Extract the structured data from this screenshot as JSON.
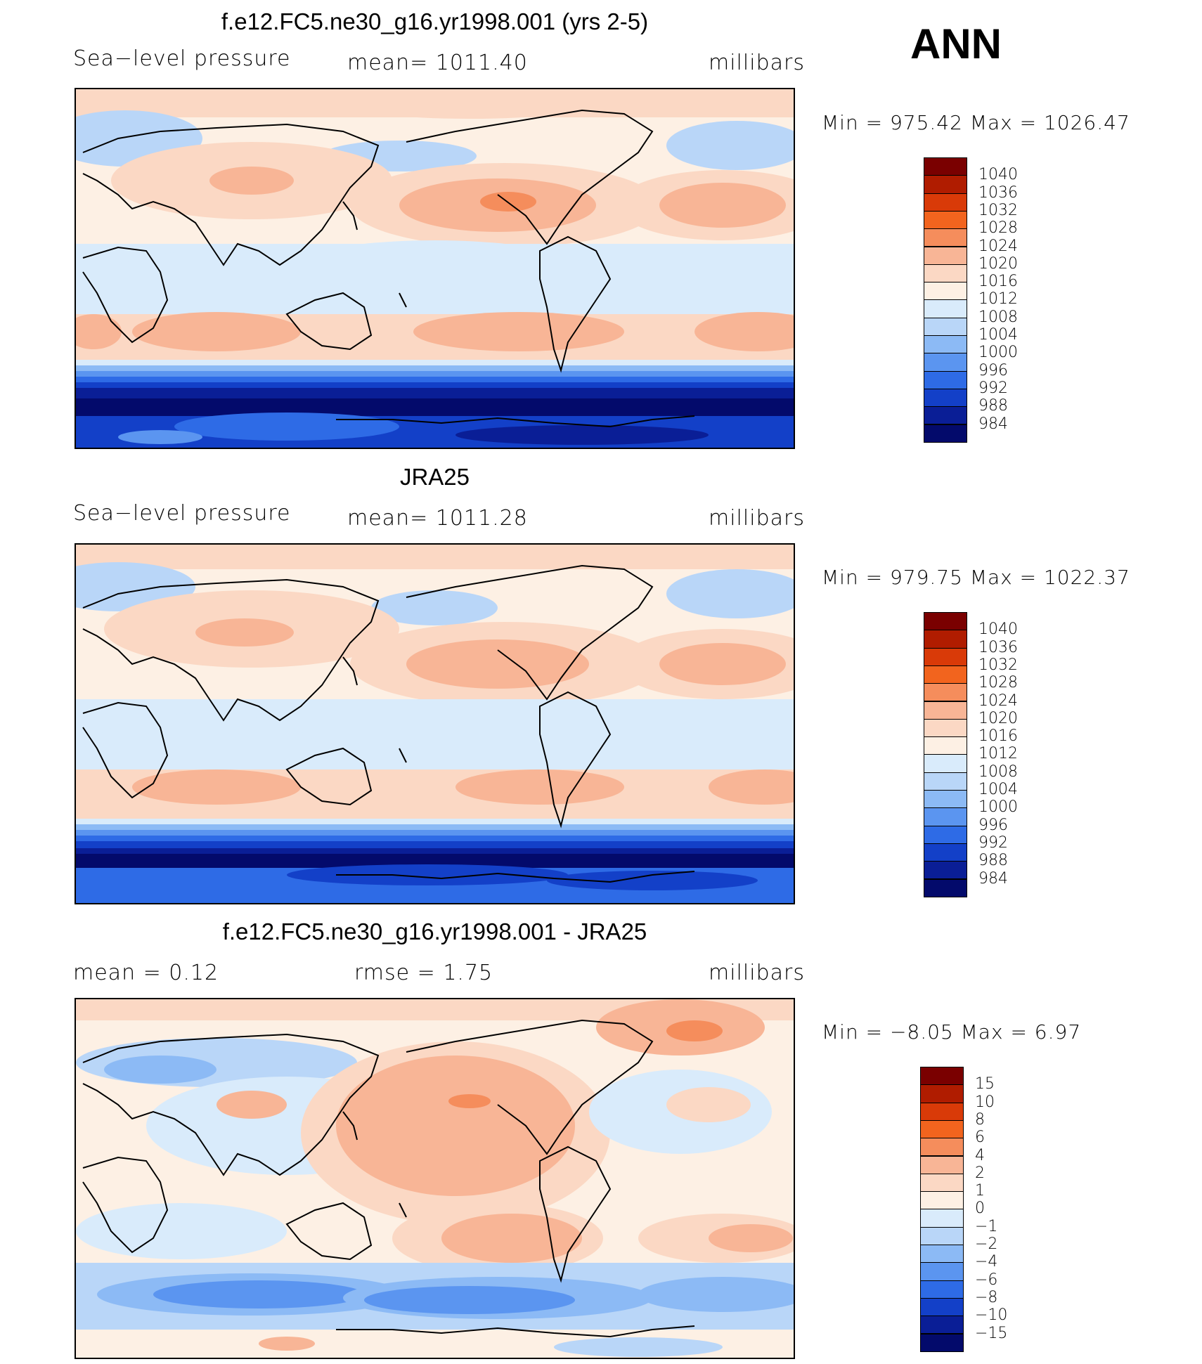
{
  "season": "ANN",
  "panels": [
    {
      "title": "f.e12.FC5.ne30_g16.yr1998.001 (yrs 2-5)",
      "left_label": "Sea−level pressure",
      "center_label": "mean=  1011.40",
      "right_label": "millibars",
      "minmax": "Min  =  975.42  Max  =  1026.47",
      "legend": {
        "levels": [
          "1040",
          "1036",
          "1032",
          "1028",
          "1024",
          "1020",
          "1016",
          "1012",
          "1008",
          "1004",
          "1000",
          "996",
          "992",
          "988",
          "984"
        ],
        "colors": [
          "#7a0000",
          "#b01c00",
          "#d93a08",
          "#f2641e",
          "#f58d5c",
          "#f8b596",
          "#fbd8c4",
          "#fdf0e4",
          "#d9ebfb",
          "#b9d6f8",
          "#8cbaf5",
          "#5b95f0",
          "#2e6be6",
          "#1340c8",
          "#0a1e96",
          "#030a6b"
        ]
      }
    },
    {
      "title": "JRA25",
      "left_label": "Sea−level pressure",
      "center_label": "mean=  1011.28",
      "right_label": "millibars",
      "minmax": "Min  =  979.75  Max  =  1022.37",
      "legend": {
        "levels": [
          "1040",
          "1036",
          "1032",
          "1028",
          "1024",
          "1020",
          "1016",
          "1012",
          "1008",
          "1004",
          "1000",
          "996",
          "992",
          "988",
          "984"
        ],
        "colors": [
          "#7a0000",
          "#b01c00",
          "#d93a08",
          "#f2641e",
          "#f58d5c",
          "#f8b596",
          "#fbd8c4",
          "#fdf0e4",
          "#d9ebfb",
          "#b9d6f8",
          "#8cbaf5",
          "#5b95f0",
          "#2e6be6",
          "#1340c8",
          "#0a1e96",
          "#030a6b"
        ]
      }
    },
    {
      "title": "f.e12.FC5.ne30_g16.yr1998.001 - JRA25",
      "left_label": "mean  =     0.12",
      "center_label": "rmse  =     1.75",
      "right_label": "millibars",
      "minmax": "Min  =   −8.05  Max  =      6.97",
      "legend": {
        "levels": [
          "15",
          "10",
          "8",
          "6",
          "4",
          "2",
          "1",
          "0",
          "−1",
          "−2",
          "−4",
          "−6",
          "−8",
          "−10",
          "−15"
        ],
        "colors": [
          "#7a0000",
          "#b01c00",
          "#d93a08",
          "#f2641e",
          "#f58d5c",
          "#f8b596",
          "#fbd8c4",
          "#fdf0e4",
          "#d9ebfb",
          "#b9d6f8",
          "#8cbaf5",
          "#5b95f0",
          "#2e6be6",
          "#1340c8",
          "#0a1e96",
          "#030a6b"
        ]
      }
    }
  ]
}
